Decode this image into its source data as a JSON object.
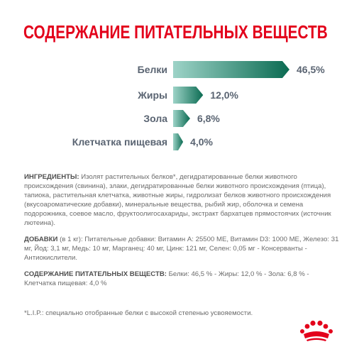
{
  "title": "СОДЕРЖАНИЕ ПИТАТЕЛЬНЫХ ВЕЩЕСТВ",
  "chart_data": {
    "type": "bar",
    "categories": [
      "Белки",
      "Жиры",
      "Зола",
      "Клетчатка пищевая"
    ],
    "values": [
      46.5,
      12.0,
      6.8,
      4.0
    ],
    "value_labels": [
      "46,5%",
      "12,0%",
      "6,8%",
      "4,0%"
    ],
    "colors": [
      "#0b6b52",
      "#9dd3c7"
    ],
    "title": "",
    "xlabel": "",
    "ylabel": ""
  },
  "ingredients": {
    "label": "ИНГРЕДИЕНТЫ:",
    "text": "Изолят растительных белков*, дегидратированные белки животного происхождения (свинина), злаки, дегидратированные белки животного происхождения (птица), тапиока, растительная клетчатка, животные жиры, гидролизат белков животного происхождения (вкусоароматические добавки), минеральные вещества, рыбий жир, оболочка и семена подорожника, соевое масло, фруктоолигосахариды, экстракт бархатцев прямостоячих (источник лютеина)."
  },
  "additives": {
    "label": "ДОБАВКИ",
    "text": "(в 1 кг): Питательные добавки: Витамин A: 25500 МЕ, Витамин D3: 1000 МЕ, Железо: 31 мг, Йод: 3,1 мг, Медь: 10 мг, Марганец: 40 мг, Цинк: 121 мг, Селен: 0,05 мг - Консерванты - Антиокислители."
  },
  "nutrients": {
    "label": "СОДЕРЖАНИЕ ПИТАТЕЛЬНЫХ ВЕЩЕСТВ:",
    "text": "Белки: 46,5 % - Жиры: 12,0 % - Зола: 6,8 % - Клетчатка пищевая: 4,0 %"
  },
  "footnote": "*L.I.P.: специально отобранные белки с высокой степенью усвояемости.",
  "logo": {
    "icon": "royal-canin-crown-logo",
    "color": "#e3001b"
  }
}
